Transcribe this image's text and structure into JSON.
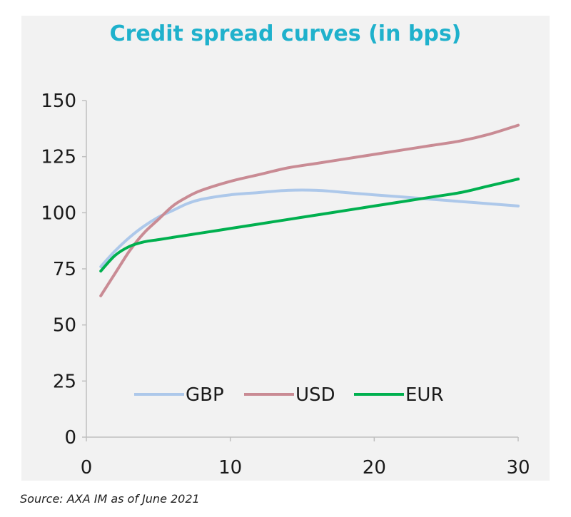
{
  "chart_data": {
    "type": "line",
    "title": "Credit spread curves (in bps)",
    "xlabel": "",
    "ylabel": "",
    "xlim": [
      0,
      30
    ],
    "ylim": [
      0,
      150
    ],
    "x_ticks": [
      0,
      10,
      20,
      30
    ],
    "y_ticks": [
      0,
      25,
      50,
      75,
      100,
      125,
      150
    ],
    "grid": false,
    "legend_position": "bottom-center",
    "series": [
      {
        "name": "GBP",
        "color": "#adc8ea",
        "x": [
          1,
          2,
          3,
          4,
          5,
          6,
          7,
          8,
          10,
          12,
          14,
          16,
          18,
          20,
          22,
          24,
          26,
          28,
          30
        ],
        "y": [
          76,
          83,
          89,
          94,
          98,
          101,
          104,
          106,
          108,
          109,
          110,
          110,
          109,
          108,
          107,
          106,
          105,
          104,
          103
        ]
      },
      {
        "name": "USD",
        "color": "#c98b94",
        "x": [
          1,
          2,
          3,
          4,
          5,
          6,
          7,
          8,
          10,
          12,
          14,
          16,
          18,
          20,
          22,
          24,
          26,
          28,
          30
        ],
        "y": [
          63,
          73,
          83,
          91,
          97,
          103,
          107,
          110,
          114,
          117,
          120,
          122,
          124,
          126,
          128,
          130,
          132,
          135,
          139
        ]
      },
      {
        "name": "EUR",
        "color": "#00b04f",
        "x": [
          1,
          2,
          3,
          4,
          5,
          6,
          7,
          8,
          10,
          12,
          14,
          16,
          18,
          20,
          22,
          24,
          26,
          28,
          30
        ],
        "y": [
          74,
          81,
          85,
          87,
          88,
          89,
          90,
          91,
          93,
          95,
          97,
          99,
          101,
          103,
          105,
          107,
          109,
          112,
          115
        ]
      }
    ]
  },
  "source": "Source: AXA IM as of June 2021"
}
